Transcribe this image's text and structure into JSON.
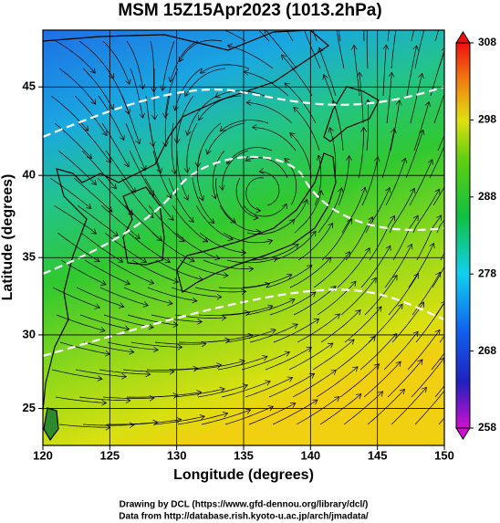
{
  "map": {
    "title": "MSM 15Z15Apr2023 (1013.2hPa)",
    "xlabel": "Longitude (degrees)",
    "ylabel": "Latitude  (degrees)",
    "xlim": [
      120,
      150
    ],
    "xticks": [
      120,
      125,
      130,
      135,
      140,
      145,
      150
    ],
    "ylim": [
      22.4,
      48
    ],
    "yticks": [
      25,
      30,
      35,
      40,
      45
    ],
    "colorbar": {
      "lim": [
        258,
        308
      ],
      "ticks": [
        258,
        268,
        278,
        288,
        298,
        308
      ]
    },
    "footer": [
      "Drawing by DCL (https://www.gfd-dennou.org/library/dcl/)",
      "Data from http://database.rish.kyoto-u.ac.jp/arch/jmadata/"
    ]
  }
}
